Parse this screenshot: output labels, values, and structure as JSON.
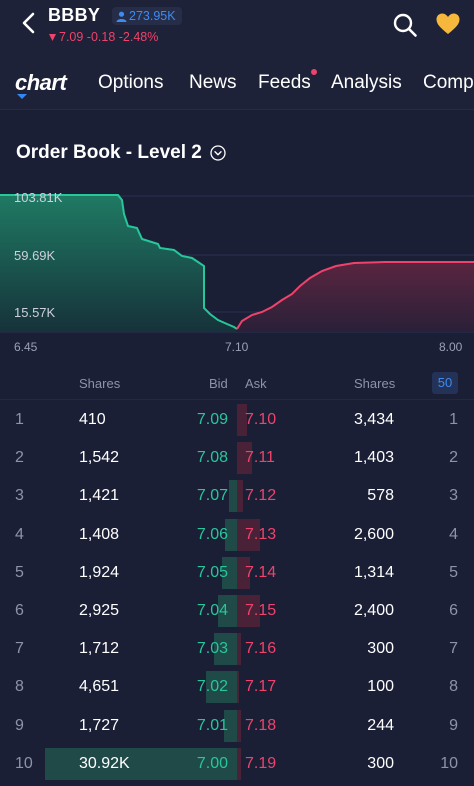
{
  "header": {
    "ticker": "BBBY",
    "followers": "273.95K",
    "price_line": "7.09 -0.18 -2.48%"
  },
  "tabs": {
    "logo_text": "chart",
    "items": [
      "Options",
      "News",
      "Feeds",
      "Analysis",
      "Comp"
    ],
    "feeds_has_notification": true
  },
  "section": {
    "title": "Order Book - Level 2"
  },
  "depth_chart": {
    "y_ticks": [
      "103.81K",
      "59.69K",
      "15.57K"
    ],
    "x_ticks": [
      "6.45",
      "7.10",
      "8.00"
    ],
    "bid_color": "#27c79a",
    "ask_color": "#f0426a"
  },
  "columns": {
    "bid_shares": "Shares",
    "bid": "Bid",
    "ask": "Ask",
    "ask_shares": "Shares",
    "depth": "50"
  },
  "orders": [
    {
      "rank": "1",
      "bid_shares": "410",
      "bid": "7.09",
      "ask": "7.10",
      "ask_shares": "3,434",
      "bid_depth": 0.0,
      "ask_depth": 0.05
    },
    {
      "rank": "2",
      "bid_shares": "1,542",
      "bid": "7.08",
      "ask": "7.11",
      "ask_shares": "1,403",
      "bid_depth": 0.0,
      "ask_depth": 0.08
    },
    {
      "rank": "3",
      "bid_shares": "1,421",
      "bid": "7.07",
      "ask": "7.12",
      "ask_shares": "578",
      "bid_depth": 0.04,
      "ask_depth": 0.03
    },
    {
      "rank": "4",
      "bid_shares": "1,408",
      "bid": "7.06",
      "ask": "7.13",
      "ask_shares": "2,600",
      "bid_depth": 0.06,
      "ask_depth": 0.12
    },
    {
      "rank": "5",
      "bid_shares": "1,924",
      "bid": "7.05",
      "ask": "7.14",
      "ask_shares": "1,314",
      "bid_depth": 0.08,
      "ask_depth": 0.07
    },
    {
      "rank": "6",
      "bid_shares": "2,925",
      "bid": "7.04",
      "ask": "7.15",
      "ask_shares": "2,400",
      "bid_depth": 0.1,
      "ask_depth": 0.12
    },
    {
      "rank": "7",
      "bid_shares": "1,712",
      "bid": "7.03",
      "ask": "7.16",
      "ask_shares": "300",
      "bid_depth": 0.12,
      "ask_depth": 0.02
    },
    {
      "rank": "8",
      "bid_shares": "4,651",
      "bid": "7.02",
      "ask": "7.17",
      "ask_shares": "100",
      "bid_depth": 0.16,
      "ask_depth": 0.01
    },
    {
      "rank": "9",
      "bid_shares": "1,727",
      "bid": "7.01",
      "ask": "7.18",
      "ask_shares": "244",
      "bid_depth": 0.07,
      "ask_depth": 0.02
    },
    {
      "rank": "10",
      "bid_shares": "30.92K",
      "bid": "7.00",
      "ask": "7.19",
      "ask_shares": "300",
      "bid_depth": 1.0,
      "ask_depth": 0.02
    }
  ]
}
